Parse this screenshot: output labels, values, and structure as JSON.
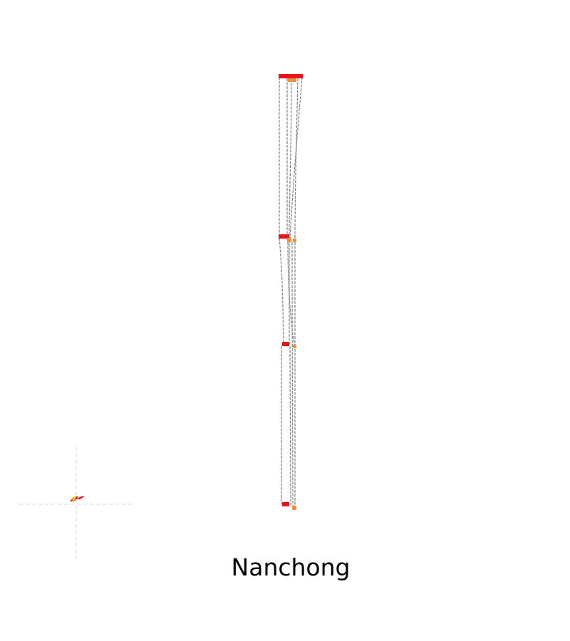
{
  "title": "Nanchong",
  "colors": {
    "background": "#ffffff",
    "link": "#808080",
    "origin_marker": "#e8141b",
    "destination_marker": "#f0923a",
    "highlight": "#f5e60a",
    "crosshair": "#d4d4d4"
  }
}
